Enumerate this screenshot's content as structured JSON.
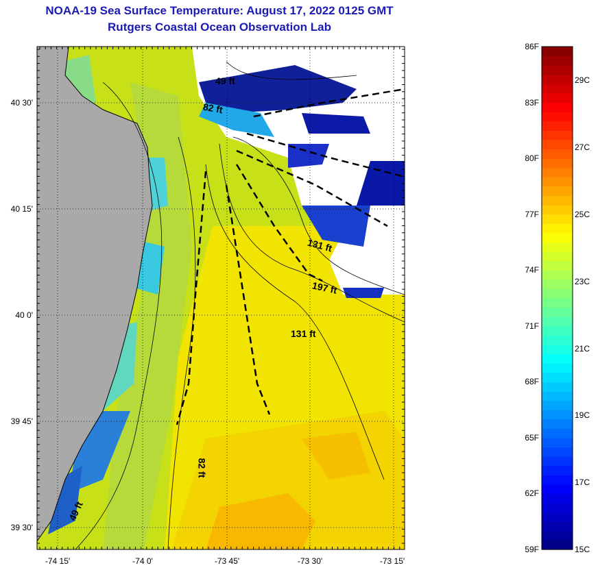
{
  "header": {
    "title": "NOAA-19 Sea Surface Temperature:  August 17, 2022 0125 GMT",
    "subtitle": "Rutgers Coastal Ocean Observation Lab"
  },
  "map": {
    "lat_labels": [
      "40 30'",
      "40 15'",
      "40 0'",
      "39 45'",
      "39 30'"
    ],
    "lon_labels": [
      "-74 15'",
      "-74 0'",
      "-73 45'",
      "-73 30'",
      "-73 15'"
    ],
    "depth_labels": [
      "49 ft",
      "82 ft",
      "131 ft",
      "197 ft",
      "131 ft",
      "82 ft",
      "49 ft"
    ],
    "colors": {
      "land": "#a9a9a9",
      "cloud": "#ffffff",
      "frame": "#000000"
    }
  },
  "colorbar": {
    "fahrenheit_labels": [
      "86F",
      "83F",
      "80F",
      "77F",
      "74F",
      "71F",
      "68F",
      "65F",
      "62F",
      "59F"
    ],
    "celsius_labels": [
      "29C",
      "27C",
      "25C",
      "23C",
      "21C",
      "19C",
      "17C",
      "15C"
    ],
    "range_f": [
      59,
      86
    ],
    "range_c": [
      15,
      30
    ]
  }
}
